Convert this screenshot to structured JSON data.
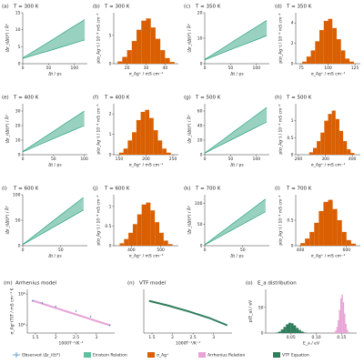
{
  "chart_data": [
    {
      "type": "area",
      "label": "(a)",
      "title": "T = 300 K",
      "xlabel": "Δt / ps",
      "ylabel": "⟨Δr_i(Δt)²⟩ / Å²",
      "color": "#1a9a74",
      "x": [
        0,
        30,
        60,
        90,
        120
      ],
      "lower": [
        1.5,
        2.9,
        4.2,
        5.6,
        7
      ],
      "upper": [
        1.7,
        4.5,
        7.3,
        10.2,
        13
      ],
      "xlim": [
        0,
        125
      ],
      "xticks": [
        0,
        50,
        100
      ],
      "ylim": [
        0,
        15
      ],
      "yticks": [
        0,
        5,
        10,
        15
      ]
    },
    {
      "type": "histogram",
      "label": "(b)",
      "title": "T = 300 K",
      "xlabel": "σ_Ag⁺ / mS cm⁻¹",
      "ylabel": "p(σ_Ag⁺) / 10⁻² mS cm⁻¹",
      "series": [
        {
          "color": "#d95f02",
          "bins": [
            15,
            17.5,
            20,
            22.5,
            25,
            27.5,
            30,
            32.5,
            35,
            37.5,
            40,
            42.5,
            45
          ],
          "counts": [
            0.4,
            1.2,
            2.4,
            4,
            6,
            7.6,
            8,
            6.4,
            4.4,
            2.4,
            1,
            0.3
          ]
        }
      ],
      "xlim": [
        13,
        47
      ],
      "xticks": [
        20,
        30,
        40
      ],
      "ylim": [
        0,
        9
      ],
      "yticks": [
        0,
        5
      ]
    },
    {
      "type": "area",
      "label": "(c)",
      "title": "T = 350 K",
      "xlabel": "Δt / ps",
      "ylabel": "⟨Δr_i(Δt)²⟩ / Å²",
      "color": "#1a9a74",
      "x": [
        0,
        30,
        60,
        90,
        120
      ],
      "lower": [
        1.5,
        3.9,
        6.3,
        8.6,
        11
      ],
      "upper": [
        1.7,
        5.5,
        9.4,
        13.2,
        17
      ],
      "xlim": [
        0,
        125
      ],
      "xticks": [
        0,
        50,
        100
      ],
      "ylim": [
        0,
        20
      ],
      "yticks": [
        0,
        10,
        20
      ]
    },
    {
      "type": "histogram",
      "label": "(d)",
      "title": "T = 350 K",
      "xlabel": "σ_Ag⁺ / mS cm⁻¹",
      "ylabel": "p(σ_Ag⁺) / 10⁻² mS cm⁻¹",
      "series": [
        {
          "color": "#d95f02",
          "bins": [
            76,
            80,
            84,
            88,
            92,
            96,
            100,
            104,
            108,
            112,
            116,
            120,
            124
          ],
          "counts": [
            0.2,
            0.7,
            1.3,
            2.2,
            3.3,
            4.2,
            4.4,
            3.5,
            2.4,
            1.3,
            0.5,
            0.2
          ]
        }
      ],
      "xlim": [
        70,
        130
      ],
      "xticks": [
        75,
        100,
        125
      ],
      "ylim": [
        0,
        5
      ],
      "yticks": [
        0,
        2,
        4
      ]
    },
    {
      "type": "area",
      "label": "(e)",
      "title": "T = 400 K",
      "xlabel": "Δt / ps",
      "ylabel": "⟨Δr_i(Δt)²⟩ / Å²",
      "color": "#1a9a74",
      "x": [
        0,
        25,
        50,
        75,
        100
      ],
      "lower": [
        2,
        6.5,
        11,
        15.5,
        20
      ],
      "upper": [
        2.2,
        9.2,
        16.1,
        23.1,
        30
      ],
      "xlim": [
        0,
        105
      ],
      "xticks": [
        0,
        50,
        100
      ],
      "ylim": [
        0,
        35
      ],
      "yticks": [
        0,
        10,
        20,
        30
      ]
    },
    {
      "type": "histogram",
      "label": "(f)",
      "title": "T = 400 K",
      "xlabel": "σ_Ag⁺ / mS cm⁻¹",
      "ylabel": "p(σ_Ag⁺) / 10⁻² mS cm⁻¹",
      "series": [
        {
          "color": "#d95f02",
          "bins": [
            150,
            158,
            166,
            174,
            182,
            190,
            198,
            206,
            214,
            222,
            230,
            238,
            246
          ],
          "counts": [
            0.1,
            0.3,
            0.7,
            1.1,
            1.7,
            2.1,
            2.2,
            1.8,
            1.2,
            0.7,
            0.3,
            0.1
          ]
        }
      ],
      "xlim": [
        140,
        260
      ],
      "xticks": [
        150,
        200,
        250
      ],
      "ylim": [
        0,
        2.5
      ],
      "yticks": [
        0,
        1,
        2
      ]
    },
    {
      "type": "area",
      "label": "(g)",
      "title": "T = 500 K",
      "xlabel": "Δt / ps",
      "ylabel": "⟨Δr_i(Δt)²⟩ / Å²",
      "color": "#1a9a74",
      "x": [
        0,
        30,
        60,
        90,
        120
      ],
      "lower": [
        2,
        12.8,
        23.5,
        34.3,
        45
      ],
      "upper": [
        2.3,
        17.9,
        33.7,
        49.3,
        65
      ],
      "xlim": [
        0,
        125
      ],
      "xticks": [
        0,
        50,
        100
      ],
      "ylim": [
        0,
        70
      ],
      "yticks": [
        0,
        20,
        40,
        60
      ]
    },
    {
      "type": "histogram",
      "label": "(h)",
      "title": "T = 500 K",
      "xlabel": "σ_Ag⁺ / mS cm⁻¹",
      "ylabel": "p(σ_Ag⁺) / 10⁻² mS cm⁻¹",
      "series": [
        {
          "color": "#d95f02",
          "bins": [
            240,
            254,
            268,
            282,
            296,
            310,
            324,
            338,
            352,
            366,
            380,
            394,
            408
          ],
          "counts": [
            0.07,
            0.2,
            0.4,
            0.65,
            1,
            1.2,
            1.3,
            1.05,
            0.7,
            0.4,
            0.16,
            0.05
          ]
        }
      ],
      "xlim": [
        190,
        430
      ],
      "xticks": [
        200,
        300,
        400
      ],
      "ylim": [
        0,
        1.5
      ],
      "yticks": [
        0,
        0.5,
        1
      ]
    },
    {
      "type": "area",
      "label": "(i)",
      "title": "T = 600 K",
      "xlabel": "Δt / ps",
      "ylabel": "⟨Δr_i(Δt)²⟩ / Å²",
      "color": "#1a9a74",
      "x": [
        0,
        20,
        40,
        60,
        80
      ],
      "lower": [
        2,
        19,
        36,
        53,
        70
      ],
      "upper": [
        2.5,
        25.6,
        48.8,
        71.9,
        95
      ],
      "xlim": [
        0,
        85
      ],
      "xticks": [
        0,
        50
      ],
      "ylim": [
        0,
        100
      ],
      "yticks": [
        0,
        50,
        100
      ]
    },
    {
      "type": "histogram",
      "label": "(j)",
      "title": "T = 600 K",
      "xlabel": "σ_Ag⁺ / mS cm⁻¹",
      "ylabel": "p(σ_Ag⁺) / 10⁻² mS cm⁻¹",
      "series": [
        {
          "color": "#d95f02",
          "bins": [
            360,
            375,
            390,
            405,
            420,
            435,
            450,
            465,
            480,
            495,
            510,
            525,
            540
          ],
          "counts": [
            0.06,
            0.17,
            0.33,
            0.55,
            0.8,
            1.05,
            1.1,
            0.9,
            0.6,
            0.33,
            0.13,
            0.04
          ]
        }
      ],
      "xlim": [
        340,
        560
      ],
      "xticks": [
        400,
        500
      ],
      "ylim": [
        0,
        1.3
      ],
      "yticks": [
        0,
        0.5,
        1
      ]
    },
    {
      "type": "area",
      "label": "(k)",
      "title": "T = 700 K",
      "xlabel": "Δt / ps",
      "ylabel": "⟨Δr_i(Δt)²⟩ / Å²",
      "color": "#1a9a74",
      "x": [
        0,
        20,
        40,
        60,
        80
      ],
      "lower": [
        2,
        21.5,
        41,
        60.5,
        80
      ],
      "upper": [
        2.5,
        29.4,
        56.3,
        83.1,
        110
      ],
      "xlim": [
        0,
        85
      ],
      "xticks": [
        0,
        50
      ],
      "ylim": [
        0,
        120
      ],
      "yticks": [
        0,
        50,
        100
      ]
    },
    {
      "type": "histogram",
      "label": "(l)",
      "title": "T = 700 K",
      "xlabel": "σ_Ag⁺ / mS cm⁻¹",
      "ylabel": "p(σ_Ag⁺) / 10⁻² mS cm⁻¹",
      "series": [
        {
          "color": "#d95f02",
          "bins": [
            400,
            420,
            440,
            460,
            480,
            500,
            520,
            540,
            560,
            580,
            600,
            620,
            640
          ],
          "counts": [
            0.05,
            0.14,
            0.27,
            0.45,
            0.68,
            0.86,
            0.9,
            0.72,
            0.5,
            0.27,
            0.11,
            0.04
          ]
        }
      ],
      "xlim": [
        380,
        660
      ],
      "xticks": [
        400,
        600
      ],
      "ylim": [
        0,
        1
      ],
      "yticks": [
        0,
        0.5
      ]
    },
    {
      "type": "line",
      "label": "(m)",
      "title": "Arrhenius model",
      "xlabel": "1000T⁻¹/K⁻¹",
      "ylabel": "σ_Ag⁺(T)T / mS cm⁻¹ K",
      "ylog": true,
      "series": [
        {
          "color": "#e7a3d5",
          "x": [
            1.4286,
            3.3333
          ],
          "values": [
            380000,
            9500
          ]
        },
        {
          "color": "#2b7bba",
          "x": [
            1.4286,
            1.6667,
            2.0,
            2.5,
            2.8571,
            3.3333
          ],
          "values": [
            364000,
            270000,
            160000,
            78000,
            35000,
            9600
          ],
          "errors": [
            20000,
            18000,
            12000,
            6000,
            3000,
            1000
          ]
        }
      ],
      "xlim": [
        1.3,
        3.45
      ],
      "xticks": [
        1.5,
        2.0,
        2.5,
        3.0
      ],
      "ylim": [
        3000,
        2000000
      ],
      "yticks": [
        {
          "value": 10000,
          "label": "10⁴"
        },
        {
          "value": 1000000,
          "label": "10⁶"
        }
      ]
    },
    {
      "type": "line",
      "label": "(n)",
      "title": "VTF model",
      "xlabel": "1000T⁻¹/K⁻¹",
      "ylog": true,
      "series": [
        {
          "color": "#2e7d5b",
          "x": [
            1.4286,
            1.9,
            2.4,
            2.9,
            3.3333
          ],
          "values": [
            360000,
            178000,
            74000,
            28000,
            9500
          ]
        }
      ],
      "xlim": [
        1.3,
        3.45
      ],
      "xticks": [
        1.5,
        2.0,
        2.5,
        3.0
      ],
      "ylim": [
        3000,
        2000000
      ]
    },
    {
      "type": "histogram",
      "label": "(o)",
      "title": "E_a distribution",
      "xlabel": "E_a / eV",
      "ylabel": "p(E_a) / eV",
      "series": [
        {
          "color": "#2e7d5b",
          "bins": [
            0.02,
            0.025,
            0.03,
            0.035,
            0.04,
            0.045,
            0.05,
            0.055,
            0.06,
            0.065,
            0.07,
            0.075,
            0.08
          ],
          "counts": [
            1,
            3,
            7,
            12,
            17,
            20,
            19,
            15,
            10,
            6,
            3,
            1
          ]
        },
        {
          "color": "#e7a3d5",
          "bins": [
            0.135,
            0.1375,
            0.14,
            0.1425,
            0.145,
            0.1475,
            0.15,
            0.1525,
            0.155,
            0.1575,
            0.16,
            0.1625,
            0.165
          ],
          "counts": [
            2,
            5,
            12,
            25,
            45,
            68,
            75,
            60,
            38,
            18,
            7,
            2
          ]
        }
      ],
      "xlim": [
        0,
        0.18
      ],
      "xticks": [
        0.05,
        {
          "value": 0.1,
          "label": "0.10"
        },
        0.15
      ],
      "ylim": [
        0,
        85
      ],
      "yticks": [
        0,
        50
      ]
    }
  ],
  "legend": [
    {
      "name": "Observed ⟨Δr_i(t)²⟩",
      "color": "#2b7bba"
    },
    {
      "name": "Einstein Relation",
      "color": "#5fbfa0"
    },
    {
      "name": "σ_Ag⁺",
      "color": "#d95f02"
    },
    {
      "name": "Arrhenius Relation",
      "color": "#e7a3d5"
    },
    {
      "name": "VTF Equation",
      "color": "#2e7d5b"
    }
  ]
}
